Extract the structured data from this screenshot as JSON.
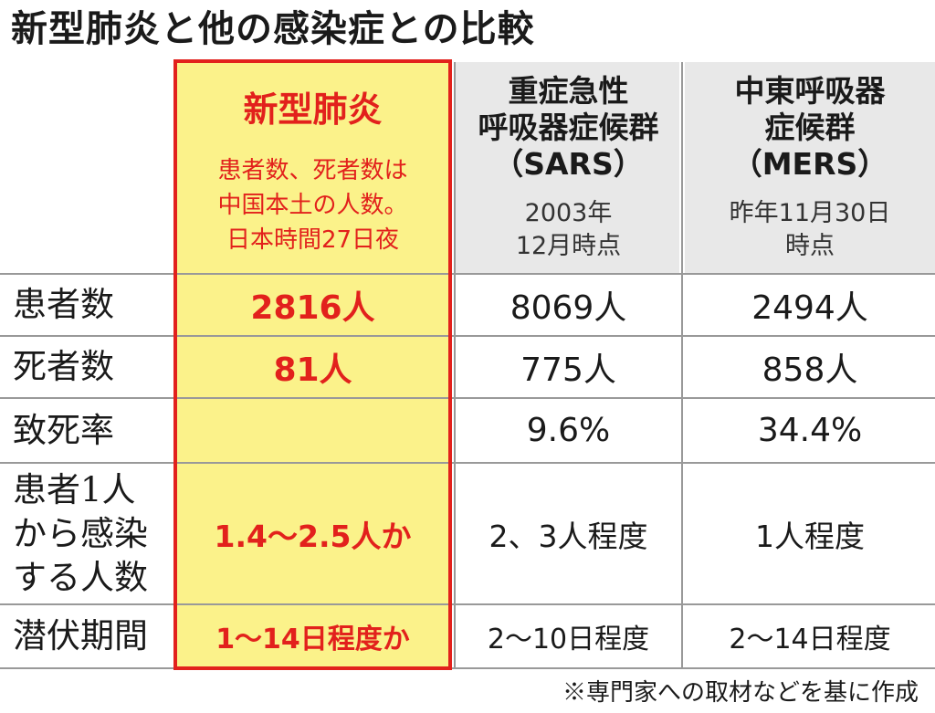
{
  "title": "新型肺炎と他の感染症との比較",
  "columns": [
    {
      "name": "新型肺炎",
      "note_lines": [
        "患者数、死者数は",
        "中国本土の人数。",
        "日本時間27日夜"
      ]
    },
    {
      "name_lines": [
        "重症急性",
        "呼吸器症候群",
        "（SARS）"
      ],
      "date_lines": [
        "2003年",
        "12月時点"
      ]
    },
    {
      "name_lines": [
        "中東呼吸器",
        "症候群",
        "（MERS）"
      ],
      "date_lines": [
        "昨年11月30日",
        "時点"
      ]
    }
  ],
  "rows": [
    {
      "label_lines": [
        "患者数"
      ],
      "values": [
        "2816人",
        "8069人",
        "2494人"
      ]
    },
    {
      "label_lines": [
        "死者数"
      ],
      "values": [
        "81人",
        "775人",
        "858人"
      ]
    },
    {
      "label_lines": [
        "致死率"
      ],
      "values": [
        "",
        "9.6%",
        "34.4%"
      ]
    },
    {
      "label_lines": [
        "患者1人",
        "から感染",
        "する人数"
      ],
      "values": [
        "1.4～2.5人か",
        "2、3人程度",
        "1人程度"
      ]
    },
    {
      "label_lines": [
        "潜伏期間"
      ],
      "values": [
        "1～14日程度か",
        "2～10日程度",
        "2～14日程度"
      ]
    }
  ],
  "footnote": "※専門家への取材などを基に作成",
  "colors": {
    "accent_red": "#e2211c",
    "highlight_yellow": "#fbf28a",
    "header_gray": "#e8e8e8"
  }
}
